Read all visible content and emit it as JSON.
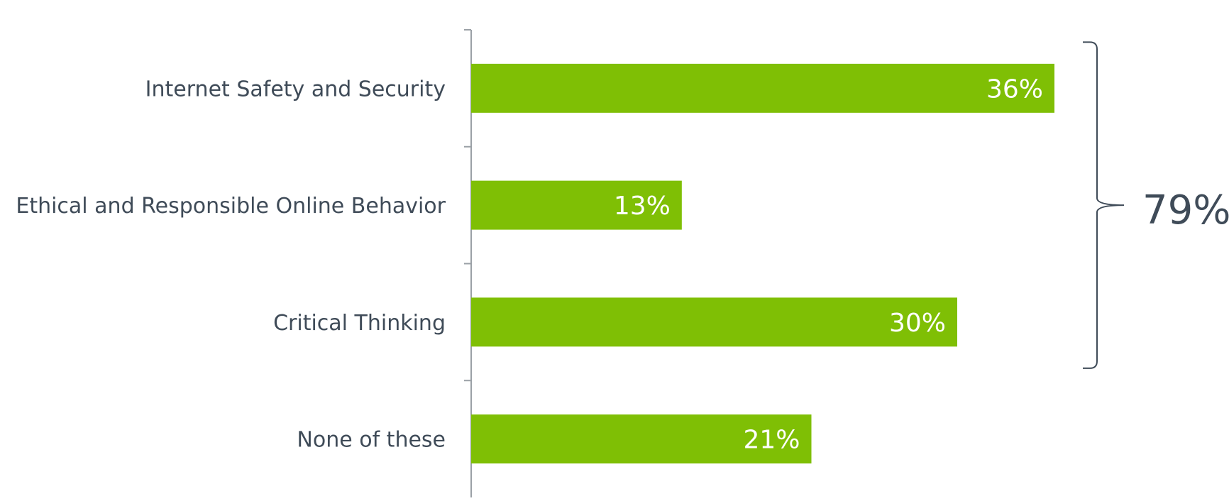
{
  "chart_data": {
    "type": "bar",
    "orientation": "horizontal",
    "categories": [
      "Internet Safety and Security",
      "Ethical and Responsible Online Behavior",
      "Critical Thinking",
      "None of these"
    ],
    "values": [
      36,
      13,
      30,
      21
    ],
    "value_labels": [
      "36%",
      "13%",
      "30%",
      "21%"
    ],
    "xlim": [
      0,
      36
    ],
    "grid": false,
    "bracket": {
      "spans_categories": [
        "Internet Safety and Security",
        "Ethical and Responsible Online Behavior",
        "Critical Thinking"
      ],
      "label": "79%"
    }
  },
  "colors": {
    "bar": "#7fbf05",
    "value_label": "#ffffff",
    "category_label": "#3f4b58",
    "axis": "#9aa0a6",
    "bracket": "#3f4b58",
    "bracket_label": "#3f4b58"
  }
}
